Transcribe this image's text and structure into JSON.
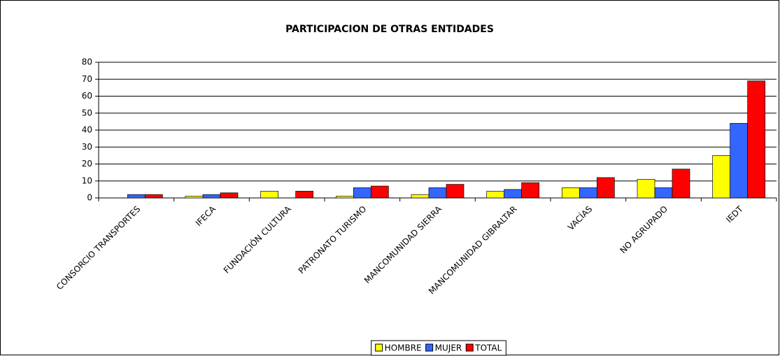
{
  "chart_data": {
    "type": "bar",
    "title": "PARTICIPACION DE OTRAS ENTIDADES",
    "categories": [
      "CONSORCIO TRANSPORTES",
      "IFECA",
      "FUNDACIÓN CULTURA",
      "PATRONATO TURISMO",
      "MANCOMUNIDAD SIERRA",
      "MANCOMUNIDAD GIBRALTAR",
      "VACÍAS",
      "NO AGRUPADO",
      "IEDT"
    ],
    "series": [
      {
        "name": "HOMBRE",
        "color": "#ffff00",
        "values": [
          0,
          1,
          4,
          1,
          2,
          4,
          6,
          11,
          25
        ]
      },
      {
        "name": "MUJER",
        "color": "#3366ff",
        "values": [
          2,
          2,
          0,
          6,
          6,
          5,
          6,
          6,
          44
        ]
      },
      {
        "name": "TOTAL",
        "color": "#ff0000",
        "values": [
          2,
          3,
          4,
          7,
          8,
          9,
          12,
          17,
          69
        ]
      }
    ],
    "ylim": [
      0,
      80
    ],
    "yticks": [
      0,
      10,
      20,
      30,
      40,
      50,
      60,
      70,
      80
    ],
    "grid": true,
    "legend": "bottom"
  }
}
